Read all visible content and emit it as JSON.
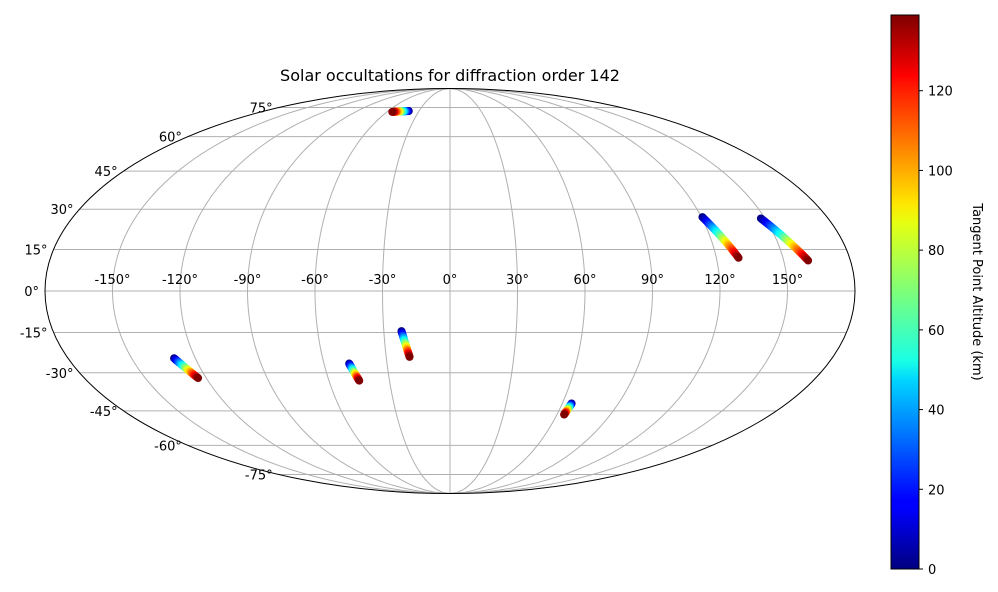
{
  "chart_data": {
    "type": "scatter",
    "projection": "mollweide",
    "title": "Solar occultations for diffraction order 142",
    "xlabel": "",
    "ylabel": "",
    "grid": true,
    "lon_ticks": [
      -150,
      -120,
      -90,
      -60,
      -30,
      0,
      30,
      60,
      90,
      120,
      150
    ],
    "lon_tick_labels": [
      "-150°",
      "-120°",
      "-90°",
      "-60°",
      "-30°",
      "0°",
      "30°",
      "60°",
      "90°",
      "120°",
      "150°"
    ],
    "lat_ticks": [
      75,
      60,
      45,
      30,
      15,
      0,
      -15,
      -30,
      -45,
      -60,
      -75
    ],
    "lat_tick_labels": [
      "75°",
      "60°",
      "45°",
      "30°",
      "15°",
      "0°",
      "-15°",
      "-30°",
      "-45°",
      "-60°",
      "-75°"
    ],
    "colorbar": {
      "label": "Tangent Point Altitude (km)",
      "colormap": "jet",
      "range": [
        0,
        139
      ],
      "ticks": [
        0,
        20,
        40,
        60,
        80,
        100,
        120
      ],
      "tick_labels": [
        "0",
        "20",
        "40",
        "60",
        "80",
        "100",
        "120"
      ]
    },
    "series": [
      {
        "lon_start": -40,
        "lat_start": 73,
        "lon_end": -55,
        "lat_end": 72.5
      },
      {
        "lon_start": 120.5,
        "lat_start": 27,
        "lon_end": 130,
        "lat_end": 12
      },
      {
        "lon_start": 148,
        "lat_start": 26.5,
        "lon_end": 161,
        "lat_end": 11
      },
      {
        "lon_start": -130,
        "lat_start": -24.5,
        "lon_end": -124,
        "lat_end": -32
      },
      {
        "lon_start": -48,
        "lat_start": -26.5,
        "lon_end": -45,
        "lat_end": -33
      },
      {
        "lon_start": -22,
        "lat_start": -14.5,
        "lon_end": -19,
        "lat_end": -24
      },
      {
        "lon_start": 65,
        "lat_start": -42,
        "lon_end": 64,
        "lat_end": -46.5
      }
    ]
  }
}
